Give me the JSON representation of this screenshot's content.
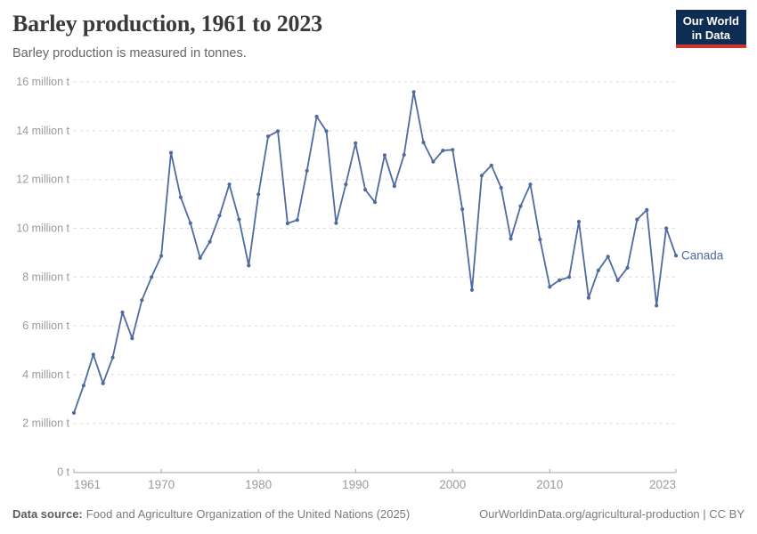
{
  "header": {
    "title": "Barley production, 1961 to 2023",
    "subtitle": "Barley production is measured in tonnes.",
    "logo": {
      "line1": "Our World",
      "line2": "in Data"
    }
  },
  "colors": {
    "line": "#4e6ba0",
    "grid": "#dcdcdc",
    "axis": "#a3a3a3",
    "tick_label": "#9a9a9a",
    "logo_bg": "#0d2d52",
    "logo_red": "#d1342c"
  },
  "chart_data": {
    "type": "line",
    "title": "Barley production, 1961 to 2023",
    "subtitle": "Barley production is measured in tonnes.",
    "unit": "tonnes",
    "ylim_million": [
      0,
      16
    ],
    "grid": "dashed horizontal gridlines",
    "legend_position": "end-of-line entity label",
    "ytick_values_million": [
      0,
      2,
      4,
      6,
      8,
      10,
      12,
      14,
      16
    ],
    "ytick_zero_label": "0 t",
    "ytick_format": "{n} million t",
    "xticks": [
      1961,
      1970,
      1980,
      1990,
      2000,
      2010,
      2023
    ],
    "x": [
      1961,
      1962,
      1963,
      1964,
      1965,
      1966,
      1967,
      1968,
      1969,
      1970,
      1971,
      1972,
      1973,
      1974,
      1975,
      1976,
      1977,
      1978,
      1979,
      1980,
      1981,
      1982,
      1983,
      1984,
      1985,
      1986,
      1987,
      1988,
      1989,
      1990,
      1991,
      1992,
      1993,
      1994,
      1995,
      1996,
      1997,
      1998,
      1999,
      2000,
      2001,
      2002,
      2003,
      2004,
      2005,
      2006,
      2007,
      2008,
      2009,
      2010,
      2011,
      2012,
      2013,
      2014,
      2015,
      2016,
      2017,
      2018,
      2019,
      2020,
      2021,
      2022,
      2023
    ],
    "series": [
      {
        "name": "Canada",
        "color": "#4e6ba0",
        "values_million_tonnes": [
          2.43,
          3.55,
          4.82,
          3.64,
          4.7,
          6.55,
          5.49,
          7.05,
          8.0,
          8.87,
          13.1,
          11.27,
          10.21,
          8.78,
          9.45,
          10.52,
          11.8,
          10.36,
          8.47,
          11.39,
          13.77,
          13.98,
          10.2,
          10.34,
          12.36,
          14.58,
          13.98,
          10.21,
          11.8,
          13.49,
          11.58,
          11.07,
          13.0,
          11.73,
          13.01,
          15.59,
          13.52,
          12.73,
          13.19,
          13.22,
          10.78,
          7.47,
          12.16,
          12.58,
          11.66,
          9.57,
          10.91,
          11.8,
          9.54,
          7.6,
          7.87,
          8.0,
          10.27,
          7.15,
          8.27,
          8.84,
          7.87,
          8.38,
          10.36,
          10.75,
          6.83,
          10.0,
          8.88
        ]
      }
    ]
  },
  "footer": {
    "source_label": "Data source:",
    "source_text": "Food and Agriculture Organization of the United Nations (2025)",
    "right_text": "OurWorldinData.org/agricultural-production | CC BY"
  }
}
